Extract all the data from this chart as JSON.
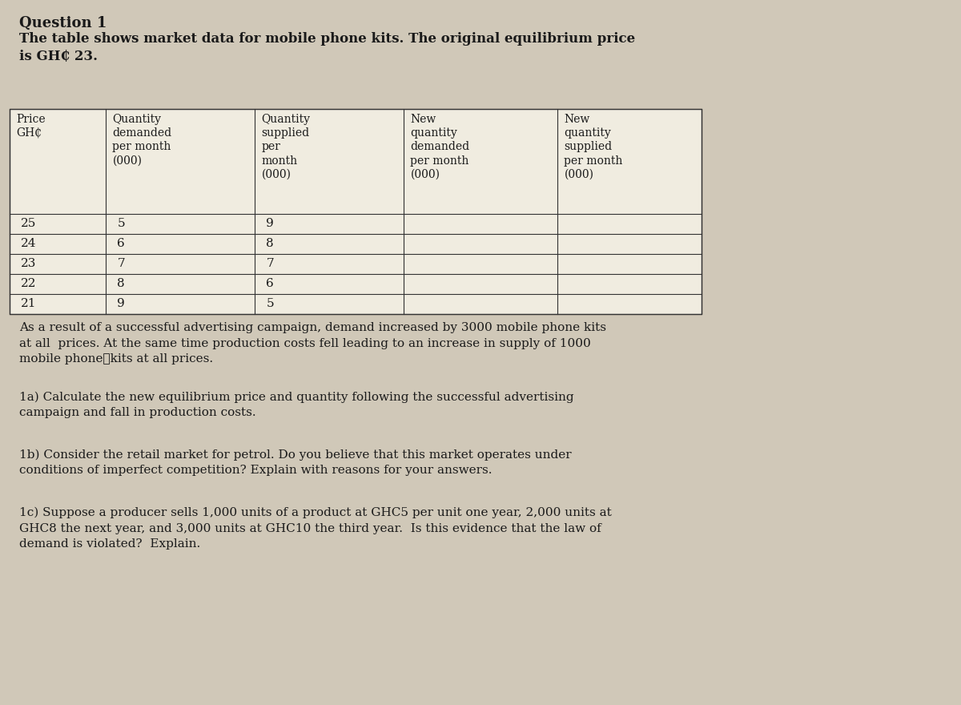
{
  "title": "Question 1",
  "intro_text": "The table shows market data for mobile phone kits. The original equilibrium price\nis GH₵ 23.",
  "col_headers": [
    "Price\nGH₵",
    "Quantity\ndemanded\nper month\n(000)",
    "Quantity\nsupplied\nper\nmonth\n(000)",
    "New\nquantity\ndemanded\nper month\n(000)",
    "New\nquantity\nsupplied\nper month\n(000)"
  ],
  "table_data": [
    [
      "25",
      "5",
      "9",
      "",
      ""
    ],
    [
      "24",
      "6",
      "8",
      "",
      ""
    ],
    [
      "23",
      "7",
      "7",
      "",
      ""
    ],
    [
      "22",
      "8",
      "6",
      "",
      ""
    ],
    [
      "21",
      "9",
      "5",
      "",
      ""
    ]
  ],
  "paragraph1": "As a result of a successful advertising campaign, demand increased by 3000 mobile phone kits\nat all  prices. At the same time production costs fell leading to an increase in supply of 1000\nmobile phone⎯kits at all prices.",
  "para_1a": "1a) Calculate the new equilibrium price and quantity following the successful advertising\ncampaign and fall in production costs.",
  "para_1b": "1b) Consider the retail market for petrol. Do you believe that this market operates under\nconditions of imperfect competition? Explain with reasons for your answers.",
  "para_1c": "1c) Suppose a producer sells 1,000 units of a product at GHC5 per unit one year, 2,000 units at\nGHC8 the next year, and 3,000 units at GHC10 the third year.  Is this evidence that the law of\ndemand is violated?  Explain.",
  "bg_color": "#d0c8b8",
  "table_bg": "#f0ece0",
  "text_color": "#1a1a1a",
  "font_size_title": 13,
  "font_size_body": 11,
  "font_size_table": 10
}
